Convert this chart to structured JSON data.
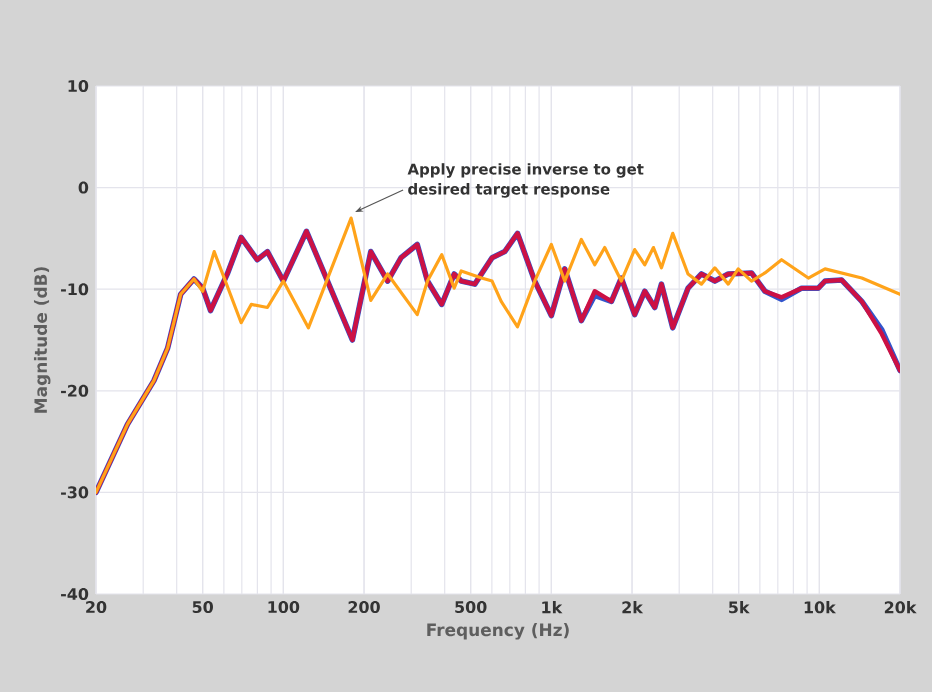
{
  "chart_data": {
    "type": "line",
    "xlabel": "Frequency (Hz)",
    "ylabel": "Magnitude (dB)",
    "log": "x",
    "xlim": [
      20,
      20000
    ],
    "ylim": [
      -40,
      10
    ],
    "xticks": [
      20,
      50,
      100,
      200,
      500,
      {
        "value": 1000,
        "label": "1k"
      },
      {
        "value": 2000,
        "label": "2k"
      },
      {
        "value": 5000,
        "label": "5k"
      },
      {
        "value": 10000,
        "label": "10k"
      },
      {
        "value": 20000,
        "label": "20k"
      }
    ],
    "yticks": [
      -40,
      -30,
      -20,
      -10,
      0,
      10
    ],
    "grid": true,
    "marker": "none",
    "line_style": "solid",
    "annotations": [
      {
        "text": "Apply precise inverse to get desired target response",
        "x": 179,
        "y": -3
      }
    ],
    "series": [
      {
        "color": "#3355cc",
        "x": [
          20,
          26.2,
          32.9,
          37,
          41.4,
          46.4,
          50,
          53.5,
          61.8,
          69.6,
          79.9,
          87.2,
          100,
          122,
          181,
          212,
          245,
          275,
          316,
          345,
          390,
          434,
          461,
          518,
          601,
          670,
          748,
          867,
          1000,
          1122,
          1294,
          1452,
          1676,
          1824,
          2046,
          2232,
          2432,
          2576,
          2838,
          3236,
          3631,
          4075,
          4571,
          5584,
          6266,
          7229,
          8590,
          9910,
          10500,
          12120,
          14400,
          17100,
          20000
        ],
        "values": [
          -30,
          -23.3,
          -19,
          -15.8,
          -10.5,
          -9,
          -9.9,
          -12.1,
          -8.5,
          -4.9,
          -7.1,
          -6.3,
          -9.2,
          -4.3,
          -15,
          -6.3,
          -9.2,
          -6.9,
          -5.6,
          -9.2,
          -11.5,
          -8.5,
          -9.2,
          -9.5,
          -6.9,
          -6.3,
          -4.5,
          -9.2,
          -12.6,
          -8,
          -13.1,
          -10.6,
          -11.2,
          -8.9,
          -12.5,
          -10.2,
          -11.8,
          -9.5,
          -13.8,
          -9.9,
          -8.5,
          -9.2,
          -8.5,
          -8.4,
          -10.2,
          -11,
          -9.9,
          -9.9,
          -9.2,
          -9.1,
          -11.2,
          -14,
          -18
        ]
      },
      {
        "color": "#cc1144",
        "x": [
          20,
          26.2,
          32.9,
          37,
          41.4,
          46.4,
          50,
          53.5,
          61.8,
          69.6,
          79.9,
          87.2,
          100,
          122,
          181,
          212,
          245,
          275,
          316,
          345,
          390,
          434,
          461,
          518,
          601,
          670,
          748,
          867,
          1000,
          1122,
          1294,
          1452,
          1676,
          1824,
          2046,
          2232,
          2432,
          2576,
          2838,
          3236,
          3631,
          4075,
          4571,
          5584,
          6266,
          7229,
          8590,
          9910,
          10500,
          12120,
          14400,
          17100,
          20000
        ],
        "values": [
          -30,
          -23.3,
          -19,
          -15.8,
          -10.5,
          -9,
          -9.9,
          -12.1,
          -8.5,
          -4.9,
          -7.1,
          -6.3,
          -9.2,
          -4.3,
          -15,
          -6.3,
          -9.2,
          -6.9,
          -5.6,
          -9.2,
          -11.5,
          -8.5,
          -9.2,
          -9.5,
          -6.9,
          -6.3,
          -4.5,
          -9.2,
          -12.6,
          -8,
          -13.1,
          -10.2,
          -11.2,
          -8.9,
          -12.5,
          -10.2,
          -11.8,
          -9.5,
          -13.8,
          -9.9,
          -8.5,
          -9.2,
          -8.5,
          -8.4,
          -10.2,
          -10.8,
          -9.9,
          -9.9,
          -9.2,
          -9.1,
          -11.2,
          -14.4,
          -18
        ]
      },
      {
        "color": "#ffa31a",
        "x": [
          20,
          26.2,
          32.9,
          37,
          41.4,
          46.4,
          50,
          55.2,
          69.6,
          75.9,
          87.2,
          100,
          124,
          179,
          212,
          245,
          316,
          345,
          390,
          434,
          461,
          549,
          601,
          650,
          748,
          867,
          1000,
          1122,
          1294,
          1452,
          1582,
          1824,
          2046,
          2232,
          2404,
          2576,
          2838,
          3236,
          3631,
          4075,
          4571,
          4980,
          5584,
          6266,
          7229,
          9100,
          10500,
          14400,
          20000
        ],
        "values": [
          -30,
          -23.3,
          -19,
          -15.8,
          -10.5,
          -9,
          -10.2,
          -6.3,
          -13.3,
          -11.5,
          -11.8,
          -9.2,
          -13.8,
          -3,
          -11.1,
          -8.5,
          -12.5,
          -9.2,
          -6.6,
          -9.9,
          -8.2,
          -8.9,
          -9.2,
          -11.2,
          -13.7,
          -9.2,
          -5.6,
          -9.2,
          -5.1,
          -7.6,
          -5.9,
          -9.2,
          -6.1,
          -7.6,
          -5.9,
          -7.9,
          -4.5,
          -8.5,
          -9.5,
          -7.9,
          -9.5,
          -8,
          -9.2,
          -8.4,
          -7.1,
          -8.9,
          -8,
          -8.9,
          -10.5
        ]
      }
    ]
  }
}
